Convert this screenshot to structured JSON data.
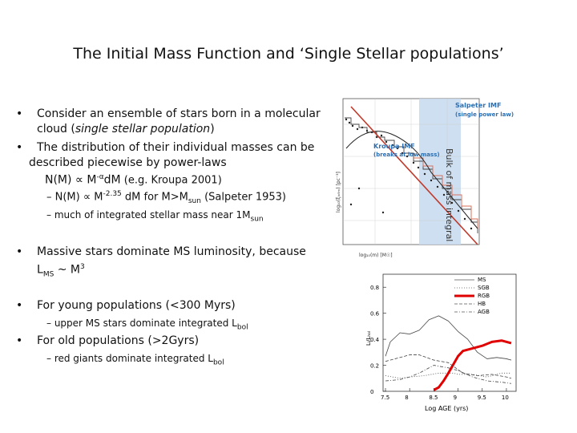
{
  "title": "The Initial Mass Function and ‘Single Stellar populations’",
  "bullets": {
    "b1": "Consider an ensemble of stars born in a molecular cloud (",
    "b1_italic": "single stellar population",
    "b1_end": ")",
    "b2": "The distribution of their individual masses can be described piecewise by power-laws",
    "b2_formula_pre": "N(M) ∝ M",
    "b2_formula_exp": "-α",
    "b2_formula_post": "dM",
    "b2_ref": " (e.g. Kroupa 2001)",
    "s1_pre": "–  N(M) ∝ M",
    "s1_exp": "-2.35",
    "s1_mid": " dM  for M>M",
    "s1_subscript": "sun",
    "s1_ref": " (Salpeter 1953)",
    "s2_pre": "–  much of  integrated stellar mass near 1M",
    "s2_subscript": "sun",
    "b3_line1": "Massive stars dominate MS luminosity, because",
    "b3_L": "L",
    "b3_sub": "MS",
    "b3_mid": " ~ M",
    "b3_exp": "3",
    "b4": "For young populations (<300 Myrs)",
    "s3_pre": "–  upper MS stars dominate integrated L",
    "s3_sub": "bol",
    "b5": "For old populations (>2Gyrs)",
    "s4_pre": "–  red giants dominate integrated L",
    "s4_sub": "bol"
  },
  "imf_figure": {
    "salpeter_title": "Salpeter IMF",
    "salpeter_subtitle": "(single power law)",
    "kroupa_title": "Kroupa IMF",
    "kroupa_subtitle": "(breaks at low mass)",
    "band_label": "Bulk of mass integral",
    "xlabel": "log₁₀(m)  [M☉]",
    "ylabel": "log₁₀(ξₗₒ₉ₘ) [pc⁻³]",
    "salpeter_color": "#c0392b",
    "band_color": "#c9dcf0",
    "title_color": "#2a6fb5"
  },
  "lum_figure": {
    "xlabel": "Log AGE (yrs)",
    "ylabel": "Lₗ/Lₕₒₗ",
    "legend": [
      "MS",
      "SGB",
      "RGB",
      "HB",
      "AGB"
    ],
    "highlight_color": "#e00000",
    "x_ticks": [
      "7.5",
      "8",
      "8.5",
      "9",
      "9.5",
      "10"
    ],
    "y_ticks": [
      "0",
      "0.2",
      "0.4",
      "0.6",
      "0.8"
    ]
  },
  "lum_data": {
    "xlim": [
      7.45,
      10.2
    ],
    "ylim": [
      0,
      0.9
    ],
    "x_ticks": [
      7.5,
      8,
      8.5,
      9,
      9.5,
      10
    ],
    "y_ticks": [
      0,
      0.2,
      0.4,
      0.6,
      0.8
    ],
    "series": [
      {
        "name": "MS",
        "style": "solid",
        "points": [
          [
            7.5,
            0.27
          ],
          [
            7.6,
            0.38
          ],
          [
            7.8,
            0.45
          ],
          [
            8.0,
            0.44
          ],
          [
            8.2,
            0.47
          ],
          [
            8.4,
            0.55
          ],
          [
            8.6,
            0.58
          ],
          [
            8.8,
            0.54
          ],
          [
            9.0,
            0.46
          ],
          [
            9.2,
            0.4
          ],
          [
            9.4,
            0.3
          ],
          [
            9.6,
            0.25
          ],
          [
            9.8,
            0.26
          ],
          [
            10.0,
            0.25
          ],
          [
            10.1,
            0.24
          ]
        ]
      },
      {
        "name": "SGB",
        "style": "dotted",
        "points": [
          [
            7.5,
            0.12
          ],
          [
            7.8,
            0.1
          ],
          [
            8.0,
            0.11
          ],
          [
            8.3,
            0.12
          ],
          [
            8.6,
            0.14
          ],
          [
            8.9,
            0.14
          ],
          [
            9.0,
            0.13
          ],
          [
            9.3,
            0.13
          ],
          [
            9.6,
            0.11
          ],
          [
            9.9,
            0.14
          ],
          [
            10.1,
            0.14
          ]
        ]
      },
      {
        "name": "RGB",
        "style": "thick",
        "points": [
          [
            8.5,
            0.01
          ],
          [
            8.6,
            0.03
          ],
          [
            8.7,
            0.08
          ],
          [
            8.8,
            0.14
          ],
          [
            9.0,
            0.27
          ],
          [
            9.1,
            0.31
          ],
          [
            9.3,
            0.33
          ],
          [
            9.5,
            0.35
          ],
          [
            9.7,
            0.38
          ],
          [
            9.9,
            0.39
          ],
          [
            10.1,
            0.37
          ]
        ]
      },
      {
        "name": "HB",
        "style": "dashed",
        "points": [
          [
            7.5,
            0.23
          ],
          [
            7.7,
            0.25
          ],
          [
            8.0,
            0.28
          ],
          [
            8.2,
            0.28
          ],
          [
            8.5,
            0.24
          ],
          [
            8.8,
            0.22
          ],
          [
            9.1,
            0.14
          ],
          [
            9.4,
            0.12
          ],
          [
            9.7,
            0.13
          ],
          [
            10.0,
            0.11
          ],
          [
            10.1,
            0.1
          ]
        ]
      },
      {
        "name": "AGB",
        "style": "dashdot",
        "points": [
          [
            7.5,
            0.08
          ],
          [
            7.8,
            0.09
          ],
          [
            8.0,
            0.11
          ],
          [
            8.2,
            0.14
          ],
          [
            8.5,
            0.2
          ],
          [
            8.8,
            0.18
          ],
          [
            9.0,
            0.16
          ],
          [
            9.3,
            0.11
          ],
          [
            9.6,
            0.08
          ],
          [
            9.9,
            0.07
          ],
          [
            10.1,
            0.06
          ]
        ]
      }
    ]
  }
}
